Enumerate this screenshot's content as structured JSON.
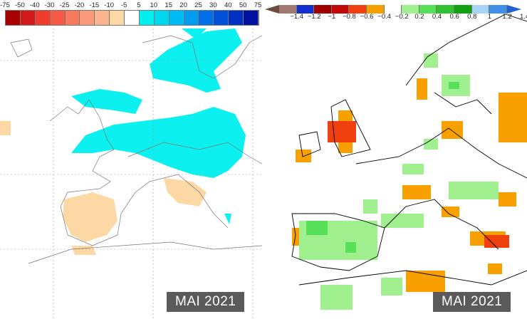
{
  "left_map": {
    "colorbar": {
      "labels": [
        "-75",
        "-50",
        "-40",
        "-30",
        "-25",
        "-20",
        "-15",
        "-10",
        "-5",
        "5",
        "10",
        "15",
        "20",
        "25",
        "30",
        "40",
        "50",
        "75"
      ],
      "colors": [
        "#a80000",
        "#d41a1a",
        "#f03c2c",
        "#f65a44",
        "#f87a5c",
        "#fa9a78",
        "#fbb48e",
        "#fcd8a4",
        "#ffffff",
        "#00f0f0",
        "#00d8f0",
        "#00bcf4",
        "#009cf0",
        "#0070e8",
        "#0050d8",
        "#0030c0",
        "#0010a0"
      ]
    },
    "date_label": "MAI 2021"
  },
  "right_map": {
    "colorbar": {
      "labels": [
        "−1.4",
        "−1.2",
        "−1",
        "−0.8",
        "−0.6",
        "−0.4",
        "−0.2",
        "0.2",
        "0.4",
        "0.6",
        "0.8",
        "1",
        "1.2",
        "1.4"
      ],
      "colors": [
        "#a07a70",
        "#1030d0",
        "#a00000",
        "#c40808",
        "#f04010",
        "#f8a000",
        "#ffffff",
        "#a0f090",
        "#58e058",
        "#30c030",
        "#10a010",
        "#a8d4f8",
        "#4090e8"
      ],
      "low_arrow_color": "#6e4a40",
      "high_arrow_color": "#2060d0"
    },
    "date_label": "MAI 2021"
  }
}
